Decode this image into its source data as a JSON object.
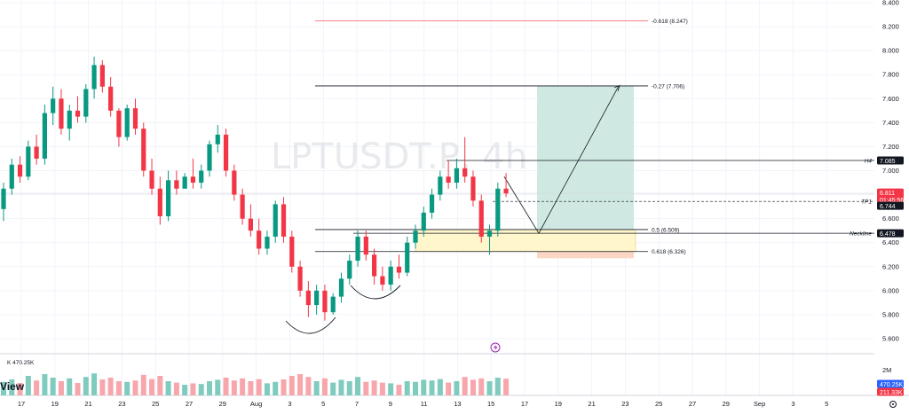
{
  "chart_data": {
    "type": "candlestick",
    "watermark": "LPTUSDT.P, 4h",
    "logo_text": "View",
    "price_axis": {
      "ylim": [
        5.5,
        8.4
      ],
      "ticks": [
        "8.400",
        "8.200",
        "8.000",
        "7.800",
        "7.600",
        "7.400",
        "7.200",
        "7.000",
        "6.800",
        "6.600",
        "6.400",
        "6.200",
        "6.000",
        "5.800",
        "5.600"
      ]
    },
    "time_axis": {
      "ticks": [
        "17",
        "19",
        "21",
        "23",
        "25",
        "27",
        "29",
        "Aug",
        "3",
        "5",
        "7",
        "9",
        "11",
        "13",
        "15",
        "17",
        "19",
        "21",
        "23",
        "25",
        "27",
        "29",
        "Sep",
        "3",
        "5"
      ]
    },
    "candles": [
      [
        6.68,
        6.9,
        6.58,
        6.85
      ],
      [
        6.85,
        7.1,
        6.8,
        7.05
      ],
      [
        7.05,
        7.12,
        6.9,
        6.95
      ],
      [
        6.95,
        7.25,
        6.92,
        7.2
      ],
      [
        7.2,
        7.3,
        7.05,
        7.1
      ],
      [
        7.1,
        7.55,
        7.05,
        7.48
      ],
      [
        7.48,
        7.7,
        7.38,
        7.6
      ],
      [
        7.6,
        7.68,
        7.3,
        7.35
      ],
      [
        7.35,
        7.55,
        7.25,
        7.5
      ],
      [
        7.5,
        7.62,
        7.4,
        7.45
      ],
      [
        7.45,
        7.72,
        7.4,
        7.68
      ],
      [
        7.68,
        7.95,
        7.6,
        7.88
      ],
      [
        7.88,
        7.92,
        7.65,
        7.7
      ],
      [
        7.7,
        7.78,
        7.45,
        7.5
      ],
      [
        7.5,
        7.52,
        7.2,
        7.28
      ],
      [
        7.28,
        7.55,
        7.25,
        7.52
      ],
      [
        7.52,
        7.6,
        7.3,
        7.35
      ],
      [
        7.35,
        7.4,
        6.95,
        7.0
      ],
      [
        7.0,
        7.1,
        6.8,
        6.85
      ],
      [
        6.85,
        6.95,
        6.55,
        6.62
      ],
      [
        6.62,
        7.0,
        6.58,
        6.92
      ],
      [
        6.92,
        7.0,
        6.8,
        6.85
      ],
      [
        6.85,
        6.98,
        6.85,
        6.95
      ],
      [
        6.95,
        7.1,
        6.85,
        6.9
      ],
      [
        6.9,
        7.05,
        6.85,
        7.0
      ],
      [
        7.0,
        7.25,
        6.95,
        7.22
      ],
      [
        7.22,
        7.38,
        7.15,
        7.3
      ],
      [
        7.3,
        7.35,
        6.95,
        7.0
      ],
      [
        7.0,
        7.05,
        6.75,
        6.8
      ],
      [
        6.8,
        6.85,
        6.55,
        6.6
      ],
      [
        6.6,
        6.72,
        6.45,
        6.5
      ],
      [
        6.5,
        6.6,
        6.3,
        6.35
      ],
      [
        6.35,
        6.5,
        6.3,
        6.45
      ],
      [
        6.45,
        6.75,
        6.4,
        6.72
      ],
      [
        6.72,
        6.78,
        6.4,
        6.45
      ],
      [
        6.45,
        6.5,
        6.15,
        6.2
      ],
      [
        6.2,
        6.25,
        5.95,
        6.0
      ],
      [
        6.0,
        6.08,
        5.78,
        5.88
      ],
      [
        5.88,
        6.05,
        5.8,
        6.0
      ],
      [
        6.0,
        6.05,
        5.75,
        5.82
      ],
      [
        5.82,
        5.98,
        5.8,
        5.95
      ],
      [
        5.95,
        6.15,
        5.9,
        6.1
      ],
      [
        6.1,
        6.3,
        6.05,
        6.25
      ],
      [
        6.25,
        6.5,
        6.2,
        6.45
      ],
      [
        6.45,
        6.5,
        6.25,
        6.3
      ],
      [
        6.3,
        6.35,
        6.05,
        6.12
      ],
      [
        6.12,
        6.2,
        6.0,
        6.05
      ],
      [
        6.05,
        6.25,
        6.0,
        6.2
      ],
      [
        6.2,
        6.3,
        6.1,
        6.15
      ],
      [
        6.15,
        6.45,
        6.12,
        6.4
      ],
      [
        6.4,
        6.55,
        6.35,
        6.5
      ],
      [
        6.5,
        6.7,
        6.45,
        6.65
      ],
      [
        6.65,
        6.85,
        6.6,
        6.8
      ],
      [
        6.8,
        7.0,
        6.75,
        6.95
      ],
      [
        6.95,
        7.08,
        6.85,
        6.9
      ],
      [
        6.9,
        7.1,
        6.85,
        7.02
      ],
      [
        7.02,
        7.28,
        6.9,
        6.95
      ],
      [
        6.95,
        7.0,
        6.7,
        6.75
      ],
      [
        6.75,
        6.8,
        6.4,
        6.45
      ],
      [
        6.45,
        6.55,
        6.3,
        6.5
      ],
      [
        6.5,
        6.9,
        6.45,
        6.85
      ],
      [
        6.85,
        6.98,
        6.78,
        6.81
      ]
    ],
    "volume_axis": {
      "label": "2M",
      "max": 2000000
    },
    "volume_label": "470.25K",
    "volume_badges": [
      "470.25K",
      "211.33K"
    ],
    "volumes": [
      0.38,
      0.45,
      0.35,
      0.55,
      0.42,
      0.6,
      0.5,
      0.4,
      0.48,
      0.35,
      0.52,
      0.62,
      0.45,
      0.5,
      0.4,
      0.38,
      0.42,
      0.58,
      0.46,
      0.55,
      0.4,
      0.36,
      0.3,
      0.34,
      0.32,
      0.4,
      0.44,
      0.5,
      0.42,
      0.48,
      0.4,
      0.46,
      0.34,
      0.38,
      0.45,
      0.55,
      0.6,
      0.52,
      0.4,
      0.48,
      0.36,
      0.44,
      0.4,
      0.52,
      0.38,
      0.42,
      0.36,
      0.34,
      0.3,
      0.4,
      0.38,
      0.44,
      0.42,
      0.46,
      0.36,
      0.4,
      0.52,
      0.44,
      0.48,
      0.4,
      0.5,
      0.47
    ],
    "levels": [
      {
        "label": "-0.618 (8.247)",
        "price": 8.247
      },
      {
        "label": "-0.27 (7.706)",
        "price": 7.706
      },
      {
        "label": "0.5 (6.509)",
        "price": 6.509
      },
      {
        "label": "0.618 (6.326)",
        "price": 6.326
      }
    ],
    "horizontal_lines": [
      {
        "label": "H4",
        "price": 7.085,
        "badge": "7.085"
      },
      {
        "label": "TP1",
        "price": 6.744,
        "badge": "6.744"
      },
      {
        "label": "Neckline",
        "price": 6.478,
        "badge": "6.478"
      }
    ],
    "current_price": {
      "price": 6.811,
      "label": "6.811",
      "countdown": "01:45:56"
    },
    "colors": {
      "up": "#089981",
      "down": "#f23645",
      "grid": "#f0f3fa",
      "target_zone": "#cfe9e2",
      "stop_zone": "#fbd6c4",
      "demand_zone": "#fff6cc",
      "fib_red": "#f23645",
      "label_bg": "#131722"
    }
  }
}
